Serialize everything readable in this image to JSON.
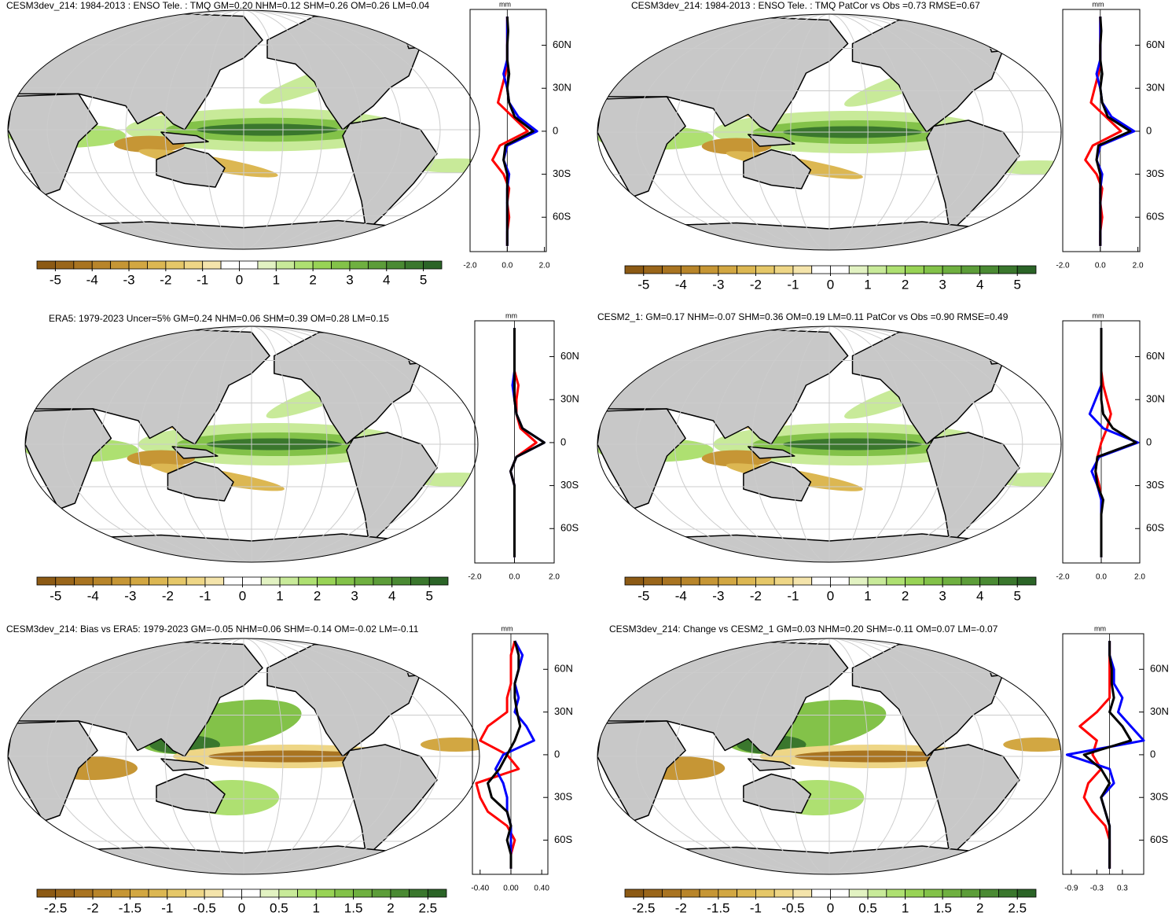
{
  "chart_data": [
    {
      "type": "map",
      "title": "CESM3dev_214: 1984-2013 : ENSO Tele. : TMQ GM=0.20 NHM=0.12 SHM=0.26 OM=0.26 LM=0.04",
      "colorbar": {
        "lim": [
          -5.5,
          5.5
        ],
        "ticks": [
          -5,
          -4,
          -3,
          -2,
          -1,
          0,
          1,
          2,
          3,
          4,
          5
        ],
        "colors": [
          "#8c5a14",
          "#9a661a",
          "#a97421",
          "#b8852a",
          "#c69635",
          "#d2a742",
          "#dcb752",
          "#e5c768",
          "#eed686",
          "#f4e4ab",
          "#ffffff",
          "#ffffff",
          "#e2f2c2",
          "#c8ea99",
          "#aee071",
          "#98d355",
          "#83c249",
          "#6fb040",
          "#5c9d39",
          "#4a8a33",
          "#3a772d",
          "#2b6427"
        ]
      },
      "profile": {
        "type": "line",
        "units": "mm",
        "xlim": [
          -2,
          2.1
        ],
        "xticks": [
          {
            "value": -2,
            "label": "-2.0"
          },
          {
            "value": 0,
            "label": "0.0"
          },
          {
            "value": 2,
            "label": "2.0"
          }
        ],
        "ylim": [
          -84,
          85
        ],
        "yticks": [
          {
            "value": 60,
            "label": "60N"
          },
          {
            "value": 30,
            "label": "30N"
          },
          0,
          {
            "value": -30,
            "label": "30S"
          },
          {
            "value": -60,
            "label": "60S"
          }
        ],
        "y": [
          80,
          70,
          60,
          50,
          40,
          30,
          20,
          10,
          0,
          -10,
          -20,
          -30,
          -40,
          -50,
          -60,
          -70,
          -80
        ],
        "series": [
          {
            "color": "red",
            "values": [
              0,
              0,
              0,
              0,
              -0.1,
              -0.3,
              -0.5,
              0.3,
              1.1,
              -0.4,
              -0.8,
              -0.2,
              0.1,
              0,
              0.1,
              0,
              0
            ]
          },
          {
            "color": "blue",
            "values": [
              0,
              0,
              0,
              0,
              -0.2,
              0,
              0.1,
              0.6,
              1.6,
              0,
              -0.2,
              0.1,
              0,
              0,
              0,
              0,
              0
            ]
          },
          {
            "color": "black",
            "values": [
              0,
              0.05,
              0,
              0,
              0.1,
              0,
              0.1,
              0.4,
              1.4,
              -0.1,
              -0.2,
              0,
              0,
              0,
              0,
              0,
              0
            ]
          }
        ]
      }
    },
    {
      "type": "map",
      "title": "CESM3dev_214: 1984-2013 : ENSO Tele. : TMQ PatCor vs Obs =0.73 RMSE=0.67",
      "colorbar": {
        "lim": [
          -5.5,
          5.5
        ],
        "ticks": [
          -5,
          -4,
          -3,
          -2,
          -1,
          0,
          1,
          2,
          3,
          4,
          5
        ],
        "colors": [
          "#8c5a14",
          "#9a661a",
          "#a97421",
          "#b8852a",
          "#c69635",
          "#d2a742",
          "#dcb752",
          "#e5c768",
          "#eed686",
          "#f4e4ab",
          "#ffffff",
          "#ffffff",
          "#e2f2c2",
          "#c8ea99",
          "#aee071",
          "#98d355",
          "#83c249",
          "#6fb040",
          "#5c9d39",
          "#4a8a33",
          "#3a772d",
          "#2b6427"
        ]
      },
      "profile": {
        "type": "line",
        "units": "mm",
        "xlim": [
          -2,
          2.1
        ],
        "xticks": [
          {
            "value": -2,
            "label": "-2.0"
          },
          {
            "value": 0,
            "label": "0.0"
          },
          {
            "value": 2,
            "label": "2.0"
          }
        ],
        "ylim": [
          -84,
          85
        ],
        "yticks": [
          {
            "value": 60,
            "label": "60N"
          },
          {
            "value": 30,
            "label": "30N"
          },
          0,
          {
            "value": -30,
            "label": "30S"
          },
          {
            "value": -60,
            "label": "60S"
          }
        ],
        "y": [
          80,
          70,
          60,
          50,
          40,
          30,
          20,
          10,
          0,
          -10,
          -20,
          -30,
          -40,
          -50,
          -60,
          -70,
          -80
        ],
        "series": [
          {
            "color": "red",
            "values": [
              0,
              0,
              0,
              0,
              -0.1,
              -0.3,
              -0.5,
              0.3,
              1.1,
              -0.4,
              -0.8,
              -0.2,
              0.1,
              0,
              0.1,
              0,
              0
            ]
          },
          {
            "color": "blue",
            "values": [
              0,
              0,
              0,
              0,
              -0.2,
              0,
              0.1,
              0.6,
              1.8,
              0,
              -0.2,
              0.1,
              0,
              0,
              0,
              0,
              0
            ]
          },
          {
            "color": "black",
            "values": [
              0,
              0.05,
              0,
              0,
              0.1,
              0,
              0.1,
              0.4,
              1.6,
              -0.1,
              -0.2,
              0,
              0,
              0,
              0,
              0,
              0
            ]
          }
        ]
      }
    },
    {
      "type": "map",
      "title": "ERA5: 1979-2023 Uncer=5% GM=0.24 NHM=0.06 SHM=0.39 OM=0.28 LM=0.15",
      "colorbar": {
        "lim": [
          -5.5,
          5.5
        ],
        "ticks": [
          -5,
          -4,
          -3,
          -2,
          -1,
          0,
          1,
          2,
          3,
          4,
          5
        ],
        "colors": [
          "#8c5a14",
          "#9a661a",
          "#a97421",
          "#b8852a",
          "#c69635",
          "#d2a742",
          "#dcb752",
          "#e5c768",
          "#eed686",
          "#f4e4ab",
          "#ffffff",
          "#ffffff",
          "#e2f2c2",
          "#c8ea99",
          "#aee071",
          "#98d355",
          "#83c249",
          "#6fb040",
          "#5c9d39",
          "#4a8a33",
          "#3a772d",
          "#2b6427"
        ]
      },
      "profile": {
        "type": "line",
        "units": "mm",
        "xlim": [
          -2,
          2
        ],
        "xticks": [
          {
            "value": -2,
            "label": "-2.0"
          },
          {
            "value": 0,
            "label": "0.0"
          },
          {
            "value": 2,
            "label": "2.0"
          }
        ],
        "ylim": [
          -84,
          85
        ],
        "yticks": [
          {
            "value": 60,
            "label": "60N"
          },
          {
            "value": 30,
            "label": "30N"
          },
          0,
          {
            "value": -30,
            "label": "30S"
          },
          {
            "value": -60,
            "label": "60S"
          }
        ],
        "y": [
          80,
          70,
          60,
          50,
          40,
          30,
          20,
          10,
          0,
          -10,
          -20,
          -30,
          -40,
          -50,
          -60,
          -70,
          -80
        ],
        "series": [
          {
            "color": "red",
            "values": [
              0,
              0,
              0,
              0,
              0.2,
              0.1,
              0.1,
              0.3,
              1.1,
              0.1,
              -0.2,
              0,
              0,
              0,
              0,
              0,
              0
            ]
          },
          {
            "color": "blue",
            "values": [
              0,
              0,
              0,
              0,
              -0.1,
              0,
              0.1,
              0.4,
              1.5,
              0.1,
              -0.2,
              0,
              0,
              0,
              0,
              0,
              0
            ]
          },
          {
            "color": "black",
            "values": [
              0,
              0,
              0,
              0,
              0,
              0,
              0.1,
              0.4,
              1.5,
              0.1,
              -0.2,
              0,
              0,
              0,
              0,
              0,
              0
            ]
          }
        ]
      }
    },
    {
      "type": "map",
      "title": "CESM2_1: GM=0.17 NHM=-0.07 SHM=0.36 OM=0.19 LM=0.11 PatCor vs Obs =0.90 RMSE=0.49",
      "colorbar": {
        "lim": [
          -5.5,
          5.5
        ],
        "ticks": [
          -5,
          -4,
          -3,
          -2,
          -1,
          0,
          1,
          2,
          3,
          4,
          5
        ],
        "colors": [
          "#8c5a14",
          "#9a661a",
          "#a97421",
          "#b8852a",
          "#c69635",
          "#d2a742",
          "#dcb752",
          "#e5c768",
          "#eed686",
          "#f4e4ab",
          "#ffffff",
          "#ffffff",
          "#e2f2c2",
          "#c8ea99",
          "#aee071",
          "#98d355",
          "#83c249",
          "#6fb040",
          "#5c9d39",
          "#4a8a33",
          "#3a772d",
          "#2b6427"
        ]
      },
      "profile": {
        "type": "line",
        "units": "mm",
        "xlim": [
          -2,
          2
        ],
        "xticks": [
          {
            "value": -2,
            "label": "-2.0"
          },
          {
            "value": 0,
            "label": "0.0"
          },
          {
            "value": 2,
            "label": "2.0"
          }
        ],
        "ylim": [
          -84,
          85
        ],
        "yticks": [
          {
            "value": 60,
            "label": "60N"
          },
          {
            "value": 30,
            "label": "30N"
          },
          0,
          {
            "value": -30,
            "label": "30S"
          },
          {
            "value": -60,
            "label": "60S"
          }
        ],
        "y": [
          80,
          70,
          60,
          50,
          40,
          30,
          20,
          10,
          0,
          -10,
          -20,
          -30,
          -40,
          -50,
          -60,
          -70,
          -80
        ],
        "series": [
          {
            "color": "red",
            "values": [
              0,
              0,
              0,
              0,
              0.1,
              0.3,
              0.5,
              0.3,
              0,
              -0.2,
              -0.3,
              -0.1,
              0,
              0,
              0,
              0,
              0
            ]
          },
          {
            "color": "blue",
            "values": [
              0,
              0,
              0,
              0,
              0,
              -0.3,
              -0.6,
              0.1,
              1.9,
              -0.1,
              -0.5,
              -0.2,
              0,
              0,
              0,
              0,
              0
            ]
          },
          {
            "color": "black",
            "values": [
              0,
              0,
              0,
              0,
              0,
              0,
              0.1,
              0.6,
              1.8,
              -0.2,
              -0.3,
              -0.2,
              0.1,
              0,
              0,
              0,
              0
            ]
          }
        ]
      }
    },
    {
      "type": "map",
      "title": "CESM3dev_214: Bias vs ERA5: 1979-2023 GM=-0.05 NHM=0.06 SHM=-0.14 OM=-0.02 LM=-0.11",
      "colorbar": {
        "lim": [
          -2.75,
          2.75
        ],
        "ticks": [
          -2.5,
          -2,
          -1.5,
          -1,
          -0.5,
          0,
          0.5,
          1,
          1.5,
          2,
          2.5
        ],
        "colors": [
          "#8c5a14",
          "#9a661a",
          "#a97421",
          "#b8852a",
          "#c69635",
          "#d2a742",
          "#dcb752",
          "#e5c768",
          "#eed686",
          "#f4e4ab",
          "#ffffff",
          "#ffffff",
          "#e2f2c2",
          "#c8ea99",
          "#aee071",
          "#98d355",
          "#83c249",
          "#6fb040",
          "#5c9d39",
          "#4a8a33",
          "#3a772d",
          "#2b6427"
        ]
      },
      "profile": {
        "type": "line",
        "units": "mm",
        "xlim": [
          -0.5,
          0.48
        ],
        "xticks": [
          {
            "value": -0.4,
            "label": "-0.40"
          },
          {
            "value": 0,
            "label": "0.00"
          },
          {
            "value": 0.4,
            "label": "0.40"
          }
        ],
        "ylim": [
          -84,
          85
        ],
        "yticks": [
          {
            "value": 60,
            "label": "60N"
          },
          {
            "value": 30,
            "label": "30N"
          },
          0,
          {
            "value": -30,
            "label": "30S"
          },
          {
            "value": -60,
            "label": "60S"
          }
        ],
        "y": [
          80,
          70,
          60,
          50,
          40,
          30,
          20,
          10,
          0,
          -10,
          -20,
          -30,
          -40,
          -50,
          -60,
          -70,
          -80
        ],
        "series": [
          {
            "color": "red",
            "values": [
              0.05,
              0,
              0,
              0,
              -0.05,
              -0.05,
              -0.3,
              -0.4,
              -0.05,
              0.1,
              -0.45,
              -0.4,
              -0.3,
              -0.05,
              0.05,
              0,
              0
            ]
          },
          {
            "color": "blue",
            "values": [
              0.05,
              0.15,
              0.1,
              0.05,
              0.1,
              0.05,
              0.2,
              0.3,
              -0.1,
              -0.2,
              -0.1,
              -0.05,
              -0.05,
              0,
              0,
              0,
              0
            ]
          },
          {
            "color": "black",
            "values": [
              0.05,
              0.1,
              0.1,
              0.05,
              0.05,
              0.08,
              0.12,
              0.05,
              -0.05,
              -0.15,
              -0.3,
              -0.25,
              -0.05,
              0,
              -0.05,
              0,
              0
            ]
          }
        ]
      }
    },
    {
      "type": "map",
      "title": "CESM3dev_214: Change vs CESM2_1 GM=0.03 NHM=0.20 SHM=-0.11 OM=0.07 LM=-0.07",
      "colorbar": {
        "lim": [
          -2.75,
          2.75
        ],
        "ticks": [
          -2.5,
          -2,
          -1.5,
          -1,
          -0.5,
          0,
          0.5,
          1,
          1.5,
          2,
          2.5
        ],
        "colors": [
          "#8c5a14",
          "#9a661a",
          "#a97421",
          "#b8852a",
          "#c69635",
          "#d2a742",
          "#dcb752",
          "#e5c768",
          "#eed686",
          "#f4e4ab",
          "#ffffff",
          "#ffffff",
          "#e2f2c2",
          "#c8ea99",
          "#aee071",
          "#98d355",
          "#83c249",
          "#6fb040",
          "#5c9d39",
          "#4a8a33",
          "#3a772d",
          "#2b6427"
        ]
      },
      "profile": {
        "type": "line",
        "units": "mm",
        "xlim": [
          -1.1,
          0.8
        ],
        "xticks": [
          -0.9,
          -0.3,
          0.3
        ],
        "ylim": [
          -84,
          85
        ],
        "yticks": [
          {
            "value": 60,
            "label": "60N"
          },
          {
            "value": 30,
            "label": "30N"
          },
          0,
          {
            "value": -30,
            "label": "30S"
          },
          {
            "value": -60,
            "label": "60S"
          }
        ],
        "y": [
          80,
          70,
          60,
          50,
          40,
          30,
          20,
          10,
          0,
          -10,
          -20,
          -30,
          -40,
          -50,
          -60,
          -70,
          -80
        ],
        "series": [
          {
            "color": "red",
            "values": [
              0,
              0,
              0,
              0,
              0,
              -0.3,
              -0.7,
              -0.3,
              -0.4,
              -0.2,
              -0.5,
              -0.6,
              -0.4,
              -0.1,
              0,
              0,
              0
            ]
          },
          {
            "color": "blue",
            "values": [
              0,
              0,
              0.1,
              0.1,
              0.3,
              0.2,
              0.5,
              0.8,
              -1.0,
              0,
              0.1,
              -0.2,
              -0.1,
              0,
              0,
              0,
              0
            ]
          },
          {
            "color": "black",
            "values": [
              0,
              0,
              0.05,
              0.05,
              0.1,
              0,
              0.3,
              0.5,
              -0.6,
              -0.2,
              0,
              -0.2,
              -0.1,
              0,
              0,
              0,
              0
            ]
          }
        ]
      }
    }
  ]
}
